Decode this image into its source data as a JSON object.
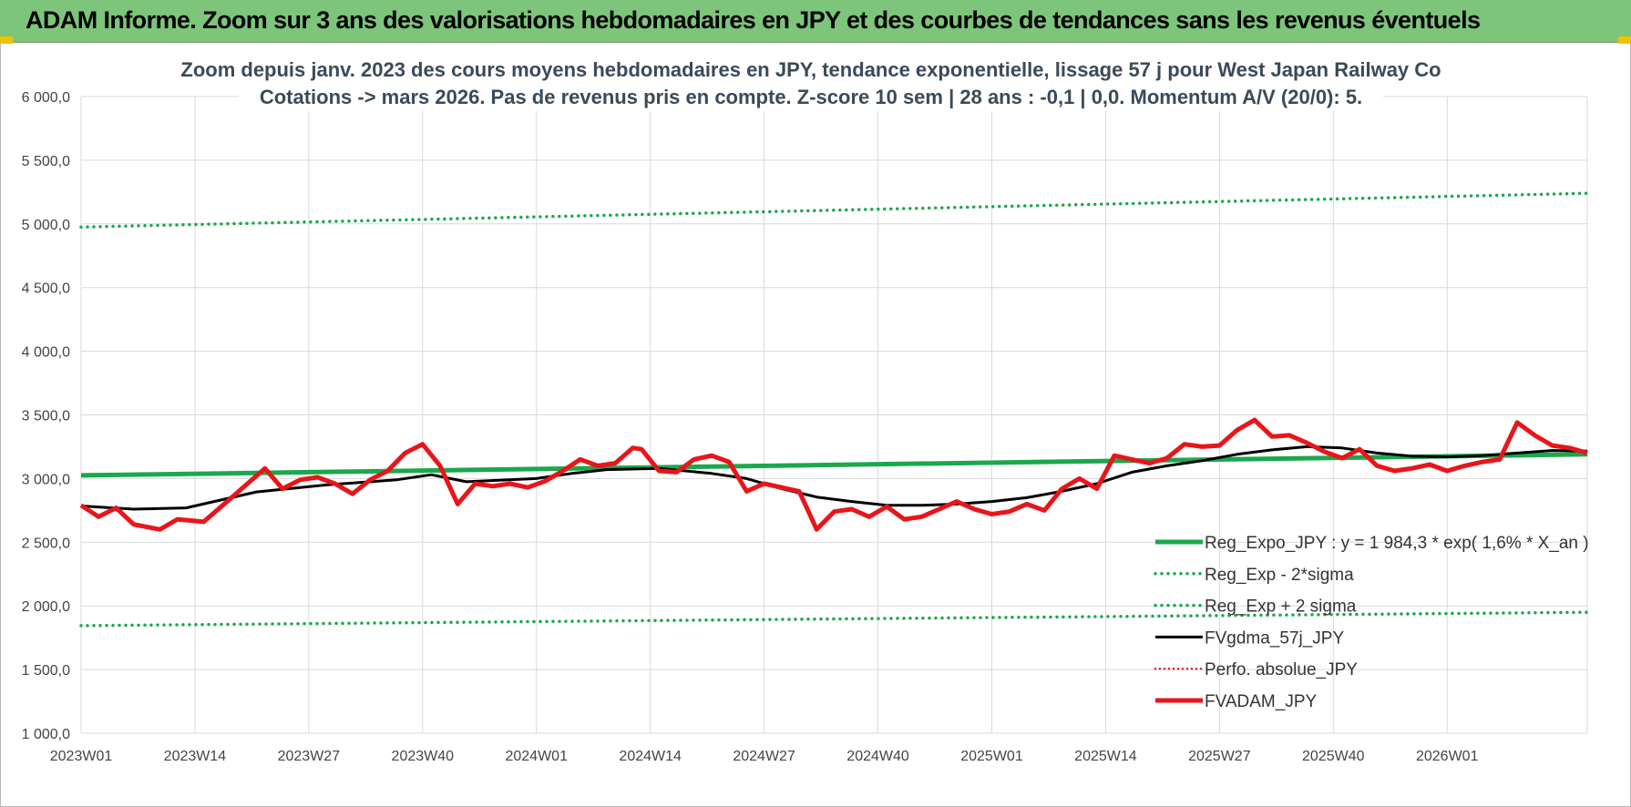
{
  "header": {
    "title": "ADAM Informe. Zoom sur 3 ans des valorisations hebdomadaires en JPY et des courbes de tendances sans les revenus éventuels"
  },
  "chart_data": {
    "type": "line",
    "title_lines": [
      "Zoom depuis janv. 2023 des cours moyens hebdomadaires en JPY, tendance exponentielle, lissage 57 j pour West Japan Railway Co",
      "Cotations -> mars 2026. Pas de revenus pris en compte. Z-score 10 sem | 28 ans : -0,1 | 0,0. Momentum A/V (20/0): 5."
    ],
    "xlabel": "",
    "ylabel": "",
    "ylim": [
      1000,
      6000
    ],
    "y_ticks": [
      "1 000,0",
      "1 500,0",
      "2 000,0",
      "2 500,0",
      "3 000,0",
      "3 500,0",
      "4 000,0",
      "4 500,0",
      "5 000,0",
      "5 500,0",
      "6 000,0"
    ],
    "y_tick_values": [
      1000,
      1500,
      2000,
      2500,
      3000,
      3500,
      4000,
      4500,
      5000,
      5500,
      6000
    ],
    "x_ticks": [
      "2023W01",
      "2023W14",
      "2023W27",
      "2023W40",
      "2024W01",
      "2024W14",
      "2024W27",
      "2024W40",
      "2025W01",
      "2025W14",
      "2025W27",
      "2025W40",
      "2026W01"
    ],
    "x_tick_weeks": [
      0,
      13,
      26,
      39,
      52,
      65,
      78,
      91,
      104,
      117,
      130,
      143,
      156
    ],
    "n_weeks": 172,
    "grid": true,
    "legend_position": "bottom-right",
    "series": [
      {
        "name": "Reg_Expo_JPY : y = 1 984,3 * exp( 1,6% * X_an )",
        "color": "#1aa84c",
        "style": "solid-thick",
        "x": [
          0,
          172
        ],
        "values": [
          3025,
          3190
        ]
      },
      {
        "name": "Reg_Exp - 2*sigma",
        "color": "#1aa84c",
        "style": "dotted",
        "x": [
          0,
          172
        ],
        "values": [
          1845,
          1950
        ]
      },
      {
        "name": "Reg_Exp + 2 sigma",
        "color": "#1aa84c",
        "style": "dotted",
        "x": [
          0,
          172
        ],
        "values": [
          4975,
          5240
        ]
      },
      {
        "name": "FVgdma_57j_JPY",
        "color": "#000000",
        "style": "solid",
        "x": [
          0,
          6,
          12,
          20,
          28,
          36,
          40,
          44,
          52,
          56,
          60,
          66,
          72,
          76,
          80,
          84,
          88,
          92,
          96,
          100,
          104,
          108,
          112,
          116,
          120,
          124,
          128,
          132,
          136,
          140,
          144,
          148,
          152,
          156,
          160,
          164,
          168,
          172
        ],
        "values": [
          2785,
          2760,
          2770,
          2895,
          2950,
          2990,
          3030,
          2975,
          3000,
          3040,
          3070,
          3080,
          3040,
          3000,
          2920,
          2855,
          2820,
          2790,
          2790,
          2800,
          2820,
          2850,
          2900,
          2960,
          3050,
          3100,
          3140,
          3190,
          3225,
          3250,
          3240,
          3200,
          3175,
          3170,
          3180,
          3200,
          3220,
          3215
        ]
      },
      {
        "name": "Perfo. absolue_JPY",
        "color": "#e8151b",
        "style": "dotted-thin",
        "x": [],
        "values": []
      },
      {
        "name": "FVADAM_JPY",
        "color": "#e8151b",
        "style": "solid-thick",
        "x": [
          0,
          2,
          4,
          6,
          9,
          11,
          14,
          16,
          19,
          21,
          23,
          25,
          27,
          29,
          31,
          33,
          35,
          37,
          39,
          41,
          43,
          45,
          47,
          49,
          51,
          53,
          55,
          57,
          59,
          61,
          63,
          64,
          66,
          68,
          70,
          72,
          74,
          76,
          78,
          80,
          82,
          84,
          86,
          88,
          90,
          92,
          94,
          96,
          98,
          100,
          102,
          104,
          106,
          108,
          110,
          112,
          114,
          116,
          118,
          120,
          122,
          124,
          126,
          128,
          130,
          132,
          134,
          136,
          138,
          140,
          142,
          144,
          146,
          148,
          150,
          152,
          154,
          156,
          158,
          160,
          162,
          164,
          166,
          168,
          170,
          172
        ],
        "values": [
          2790,
          2700,
          2770,
          2640,
          2600,
          2680,
          2660,
          2780,
          2960,
          3080,
          2920,
          2990,
          3010,
          2960,
          2880,
          2990,
          3060,
          3200,
          3270,
          3100,
          2800,
          2960,
          2940,
          2960,
          2930,
          2980,
          3060,
          3150,
          3100,
          3120,
          3240,
          3230,
          3060,
          3050,
          3150,
          3180,
          3130,
          2900,
          2960,
          2930,
          2900,
          2600,
          2740,
          2760,
          2700,
          2780,
          2680,
          2700,
          2760,
          2820,
          2760,
          2720,
          2740,
          2800,
          2750,
          2920,
          3000,
          2920,
          3180,
          3150,
          3120,
          3160,
          3270,
          3250,
          3260,
          3380,
          3460,
          3330,
          3340,
          3280,
          3210,
          3160,
          3230,
          3100,
          3060,
          3080,
          3110,
          3060,
          3100,
          3130,
          3150,
          3440,
          3340,
          3260,
          3240,
          3200
        ]
      }
    ]
  }
}
